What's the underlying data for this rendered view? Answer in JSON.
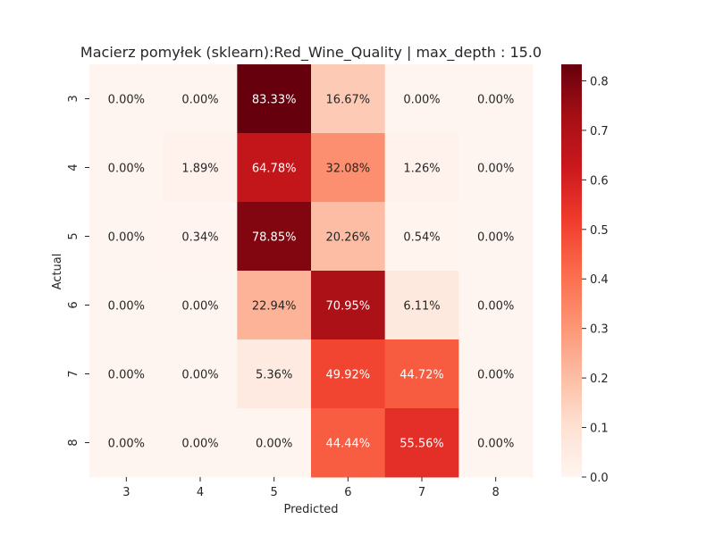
{
  "chart_data": {
    "type": "heatmap",
    "title": "Macierz pomyłek (sklearn):Red_Wine_Quality | max_depth : 15.0",
    "xlabel": "Predicted",
    "ylabel": "Actual",
    "x_categories": [
      "3",
      "4",
      "5",
      "6",
      "7",
      "8"
    ],
    "y_categories": [
      "3",
      "4",
      "5",
      "6",
      "7",
      "8"
    ],
    "values": [
      [
        0.0,
        0.0,
        0.8333,
        0.1667,
        0.0,
        0.0
      ],
      [
        0.0,
        0.0189,
        0.6478,
        0.3208,
        0.0126,
        0.0
      ],
      [
        0.0,
        0.0034,
        0.7885,
        0.2026,
        0.0054,
        0.0
      ],
      [
        0.0,
        0.0,
        0.2294,
        0.7095,
        0.0611,
        0.0
      ],
      [
        0.0,
        0.0,
        0.0536,
        0.4992,
        0.4472,
        0.0
      ],
      [
        0.0,
        0.0,
        0.0,
        0.4444,
        0.5556,
        0.0
      ]
    ],
    "cell_labels": [
      [
        "0.00%",
        "0.00%",
        "83.33%",
        "16.67%",
        "0.00%",
        "0.00%"
      ],
      [
        "0.00%",
        "1.89%",
        "64.78%",
        "32.08%",
        "1.26%",
        "0.00%"
      ],
      [
        "0.00%",
        "0.34%",
        "78.85%",
        "20.26%",
        "0.54%",
        "0.00%"
      ],
      [
        "0.00%",
        "0.00%",
        "22.94%",
        "70.95%",
        "6.11%",
        "0.00%"
      ],
      [
        "0.00%",
        "0.00%",
        "5.36%",
        "49.92%",
        "44.72%",
        "0.00%"
      ],
      [
        "0.00%",
        "0.00%",
        "0.00%",
        "44.44%",
        "55.56%",
        "0.00%"
      ]
    ],
    "colormap": "Reds",
    "vmin": 0.0,
    "vmax": 0.8333,
    "colorbar_ticks": [
      "0.0",
      "0.1",
      "0.2",
      "0.3",
      "0.4",
      "0.5",
      "0.6",
      "0.7",
      "0.8"
    ],
    "colorbar_values": [
      0.0,
      0.1,
      0.2,
      0.3,
      0.4,
      0.5,
      0.6,
      0.7,
      0.8
    ],
    "grid": false
  }
}
